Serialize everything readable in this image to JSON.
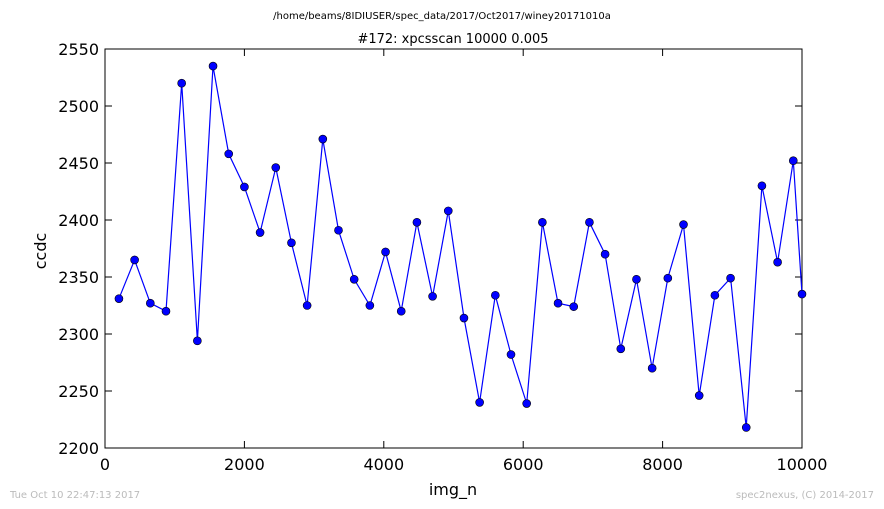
{
  "header": {
    "file_path": "/home/beams/8IDIUSER/spec_data/2017/Oct2017/winey20171010a"
  },
  "footer": {
    "timestamp": "Tue Oct 10 22:47:13 2017",
    "credit": "spec2nexus, (C) 2014-2017"
  },
  "chart_data": {
    "type": "line",
    "title": "#172: xpcsscan 10000 0.005",
    "xlabel": "img_n",
    "ylabel": "ccdc",
    "xlim": [
      0,
      10000
    ],
    "ylim": [
      2200,
      2550
    ],
    "xticks": [
      "0",
      "2000",
      "4000",
      "6000",
      "8000",
      "10000"
    ],
    "yticks": [
      "2200",
      "2250",
      "2300",
      "2350",
      "2400",
      "2450",
      "2500",
      "2550"
    ],
    "grid": false,
    "marker": "circle",
    "series_color": "#0000ff",
    "series": [
      {
        "x": [
          200,
          425,
          650,
          875,
          1100,
          1325,
          1550,
          1775,
          2000,
          2225,
          2450,
          2675,
          2900,
          3125,
          3350,
          3575,
          3800,
          4025,
          4250,
          4475,
          4700,
          4925,
          5150,
          5375,
          5600,
          5825,
          6050,
          6275,
          6500,
          6725,
          6950,
          7175,
          7400,
          7625,
          7850,
          8075,
          8300,
          8525,
          8750,
          8975,
          9200,
          9425,
          9650,
          9875,
          10000
        ],
        "y": [
          2331,
          2365,
          2327,
          2320,
          2520,
          2294,
          2535,
          2458,
          2429,
          2389,
          2446,
          2380,
          2325,
          2471,
          2391,
          2348,
          2325,
          2372,
          2320,
          2398,
          2333,
          2408,
          2314,
          2240,
          2334,
          2282,
          2239,
          2398,
          2327,
          2324,
          2398,
          2370,
          2287,
          2348,
          2270,
          2349,
          2396,
          2246,
          2334,
          2349,
          2218,
          2430,
          2363,
          2452,
          2335
        ]
      }
    ]
  }
}
